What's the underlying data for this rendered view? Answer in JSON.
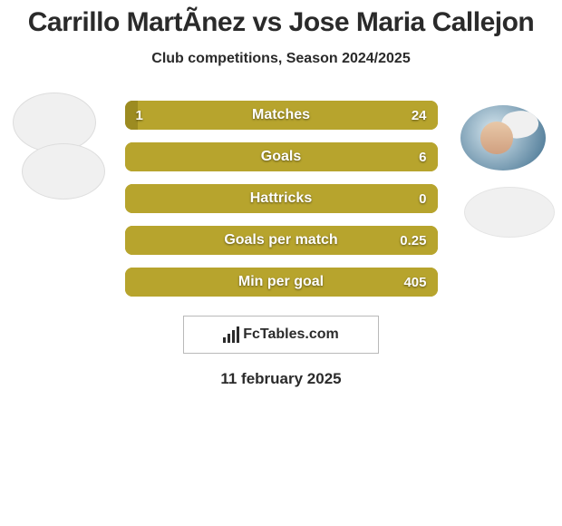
{
  "title": "Carrillo MartÃ­nez vs Jose Maria Callejon",
  "subtitle": "Club competitions, Season 2024/2025",
  "logo_text": "FcTables.com",
  "date": "11 february 2025",
  "bar_style": {
    "outer_width": 345,
    "height": 32,
    "radius": 8,
    "font_size": 16,
    "label_color": "#ffffff",
    "left_color": "#b7a42d",
    "right_color": "#b7a42d",
    "neutral_bg": "#b7a42d"
  },
  "stats": [
    {
      "label": "Matches",
      "left_val": "1",
      "right_val": "24",
      "left_share": 0.04,
      "left_bg": "#9c8b21",
      "right_bg": "#b7a42d"
    },
    {
      "label": "Goals",
      "left_val": "",
      "right_val": "6",
      "left_share": 0.0,
      "left_bg": "#b7a42d",
      "right_bg": "#b7a42d"
    },
    {
      "label": "Hattricks",
      "left_val": "",
      "right_val": "0",
      "left_share": 0.0,
      "left_bg": "#b7a42d",
      "right_bg": "#b7a42d"
    },
    {
      "label": "Goals per match",
      "left_val": "",
      "right_val": "0.25",
      "left_share": 0.0,
      "left_bg": "#b7a42d",
      "right_bg": "#b7a42d"
    },
    {
      "label": "Min per goal",
      "left_val": "",
      "right_val": "405",
      "left_share": 0.0,
      "left_bg": "#b7a42d",
      "right_bg": "#b7a42d"
    }
  ]
}
